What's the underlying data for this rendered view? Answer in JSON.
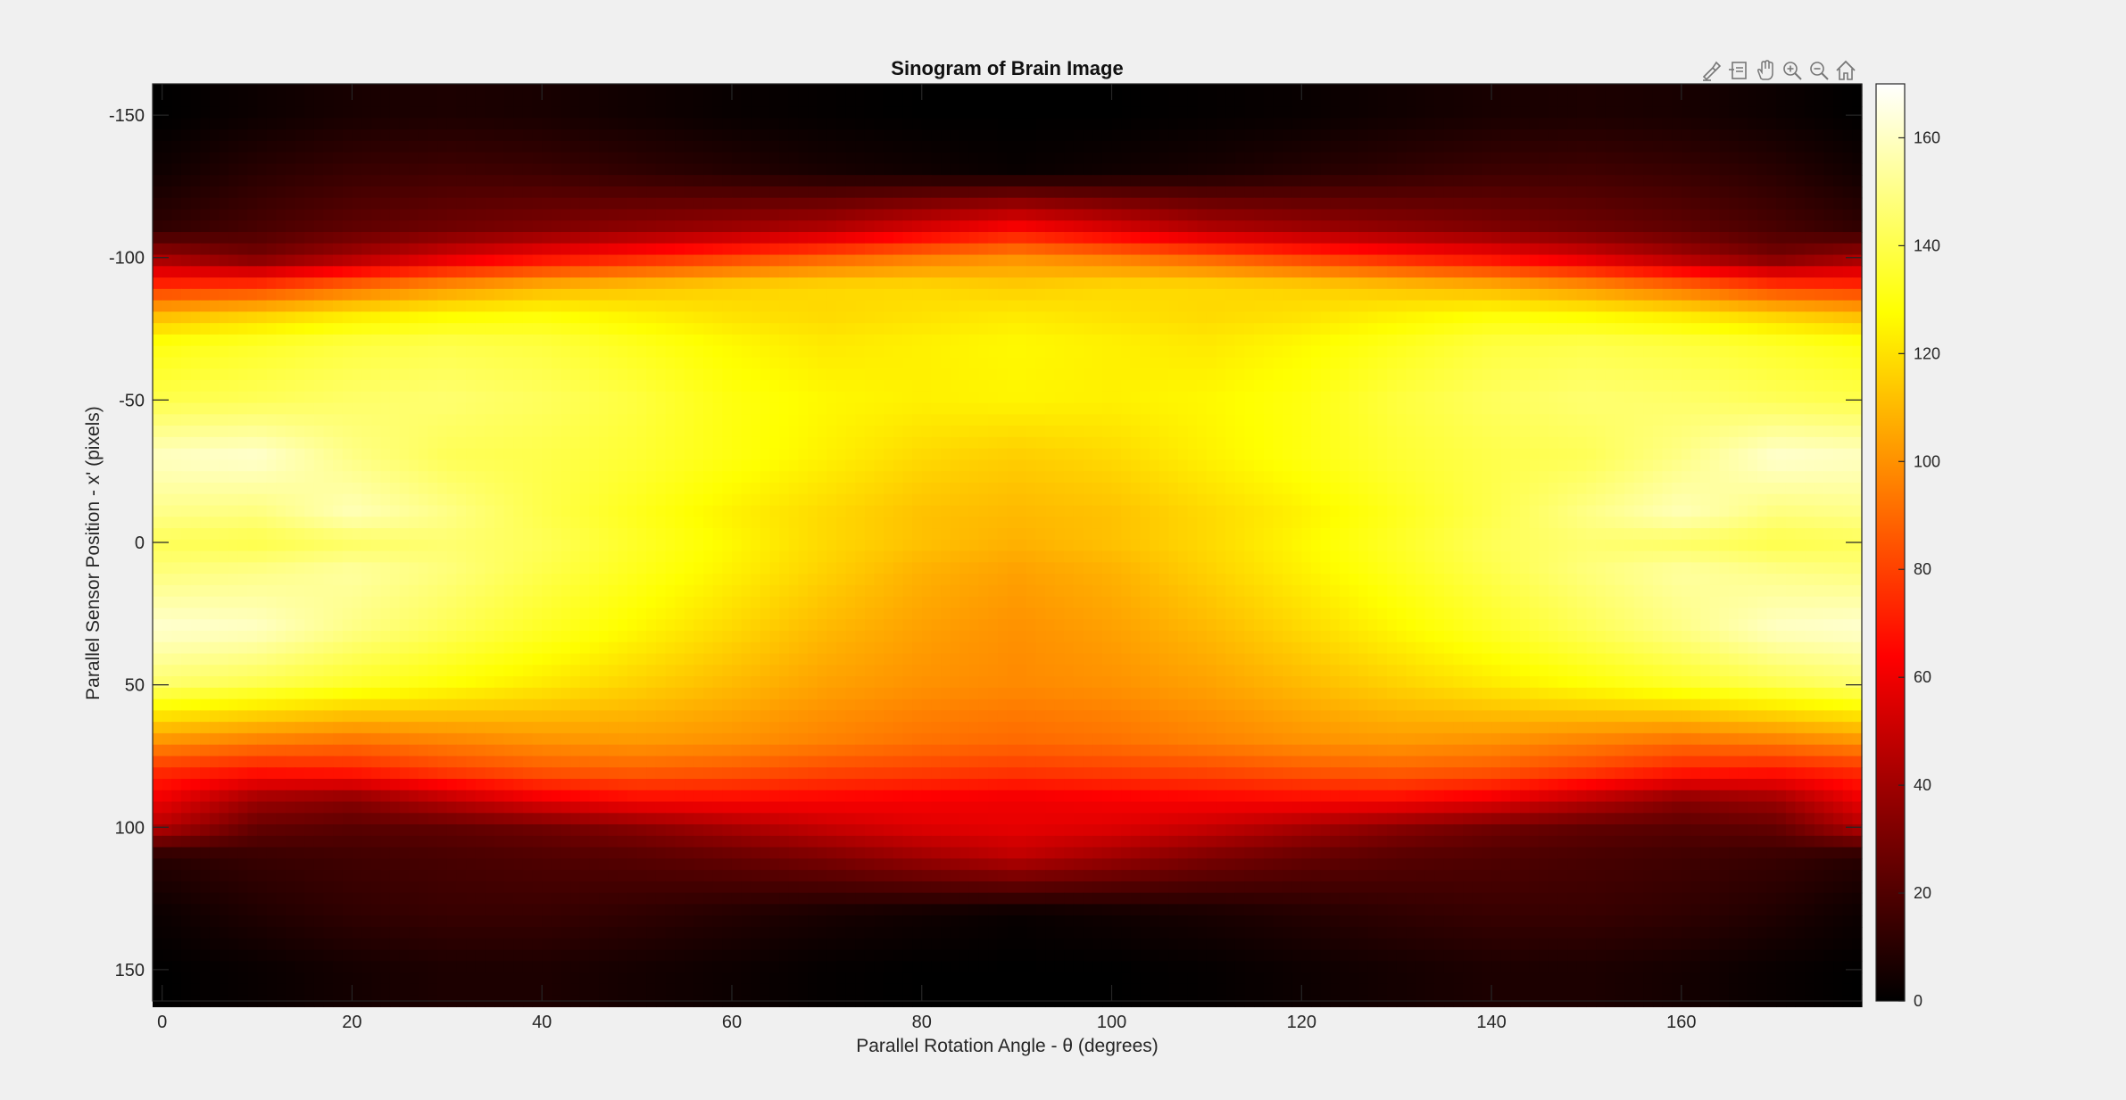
{
  "chart_data": {
    "type": "heatmap",
    "title": "Sinogram of Brain Image",
    "xlabel": "Parallel Rotation Angle - θ (degrees)",
    "ylabel": "Parallel Sensor Position - x' (pixels)",
    "xlim": [
      -1,
      179
    ],
    "ylim": [
      -161,
      161
    ],
    "y_direction": "reverse",
    "x_ticks": [
      0,
      20,
      40,
      60,
      80,
      100,
      120,
      140,
      160
    ],
    "y_ticks": [
      -150,
      -100,
      -50,
      0,
      50,
      100,
      150
    ],
    "colormap": "hot",
    "color_limits": [
      0,
      170
    ],
    "colorbar_ticks": [
      0,
      20,
      40,
      60,
      80,
      100,
      120,
      140,
      160
    ],
    "colorbar_location": "right",
    "grid": false,
    "x": [
      0,
      10,
      20,
      30,
      40,
      50,
      60,
      70,
      80,
      90,
      100,
      110,
      120,
      130,
      140,
      150,
      160,
      170,
      179
    ],
    "y": [
      -150,
      -130,
      -110,
      -100,
      -90,
      -80,
      -70,
      -50,
      -30,
      -10,
      0,
      10,
      30,
      50,
      70,
      80,
      90,
      100,
      110,
      130,
      150
    ],
    "z": [
      [
        0,
        3,
        6,
        7,
        6,
        4,
        2,
        1,
        0,
        0,
        0,
        1,
        2,
        4,
        6,
        7,
        6,
        3,
        0
      ],
      [
        4,
        10,
        14,
        16,
        15,
        12,
        9,
        6,
        4,
        2,
        4,
        6,
        9,
        12,
        15,
        16,
        14,
        10,
        4
      ],
      [
        12,
        18,
        24,
        28,
        32,
        36,
        40,
        45,
        55,
        65,
        55,
        45,
        40,
        36,
        32,
        28,
        24,
        18,
        12
      ],
      [
        40,
        30,
        42,
        55,
        65,
        72,
        80,
        88,
        95,
        100,
        95,
        88,
        80,
        72,
        65,
        55,
        42,
        30,
        40
      ],
      [
        75,
        78,
        90,
        100,
        108,
        112,
        116,
        118,
        118,
        115,
        118,
        118,
        116,
        112,
        108,
        100,
        90,
        78,
        75
      ],
      [
        110,
        115,
        122,
        126,
        128,
        124,
        120,
        118,
        120,
        122,
        120,
        118,
        120,
        124,
        128,
        126,
        122,
        115,
        110
      ],
      [
        130,
        134,
        138,
        140,
        138,
        132,
        126,
        122,
        124,
        126,
        124,
        122,
        126,
        132,
        138,
        140,
        138,
        134,
        130
      ],
      [
        140,
        142,
        145,
        146,
        143,
        138,
        130,
        126,
        124,
        125,
        124,
        126,
        130,
        138,
        143,
        146,
        145,
        142,
        140
      ],
      [
        160,
        162,
        150,
        142,
        140,
        136,
        130,
        124,
        118,
        115,
        118,
        124,
        130,
        136,
        140,
        142,
        150,
        162,
        160
      ],
      [
        150,
        148,
        158,
        150,
        140,
        132,
        124,
        118,
        112,
        110,
        112,
        118,
        124,
        132,
        140,
        150,
        158,
        148,
        150
      ],
      [
        142,
        140,
        144,
        146,
        142,
        134,
        126,
        118,
        112,
        108,
        112,
        118,
        126,
        134,
        142,
        146,
        144,
        140,
        142
      ],
      [
        148,
        150,
        154,
        148,
        140,
        132,
        124,
        116,
        108,
        104,
        108,
        116,
        124,
        132,
        140,
        148,
        154,
        150,
        148
      ],
      [
        162,
        160,
        150,
        142,
        134,
        126,
        118,
        110,
        104,
        100,
        104,
        110,
        118,
        126,
        134,
        142,
        150,
        160,
        162
      ],
      [
        145,
        140,
        134,
        128,
        122,
        116,
        110,
        104,
        100,
        98,
        100,
        104,
        110,
        116,
        122,
        128,
        134,
        140,
        145
      ],
      [
        100,
        95,
        92,
        96,
        100,
        102,
        100,
        96,
        92,
        90,
        92,
        96,
        100,
        102,
        100,
        96,
        92,
        95,
        100
      ],
      [
        75,
        70,
        72,
        80,
        86,
        88,
        86,
        82,
        80,
        78,
        80,
        82,
        86,
        88,
        86,
        80,
        72,
        70,
        75
      ],
      [
        60,
        40,
        35,
        48,
        60,
        66,
        66,
        64,
        62,
        60,
        62,
        64,
        66,
        66,
        60,
        48,
        35,
        40,
        60
      ],
      [
        45,
        25,
        22,
        24,
        28,
        34,
        42,
        50,
        56,
        58,
        56,
        50,
        42,
        34,
        28,
        24,
        22,
        25,
        45
      ],
      [
        10,
        14,
        16,
        18,
        20,
        22,
        26,
        32,
        40,
        48,
        40,
        32,
        26,
        22,
        20,
        18,
        16,
        14,
        10
      ],
      [
        3,
        8,
        12,
        14,
        14,
        12,
        9,
        6,
        4,
        2,
        4,
        6,
        9,
        12,
        14,
        14,
        12,
        8,
        3
      ],
      [
        0,
        2,
        5,
        7,
        7,
        5,
        3,
        1,
        0,
        0,
        0,
        1,
        3,
        5,
        7,
        7,
        5,
        2,
        0
      ]
    ]
  },
  "toolbar": {
    "icons": [
      "brush-icon",
      "datatip-icon",
      "pan-hand-icon",
      "zoom-in-icon",
      "zoom-out-icon",
      "home-icon"
    ]
  }
}
